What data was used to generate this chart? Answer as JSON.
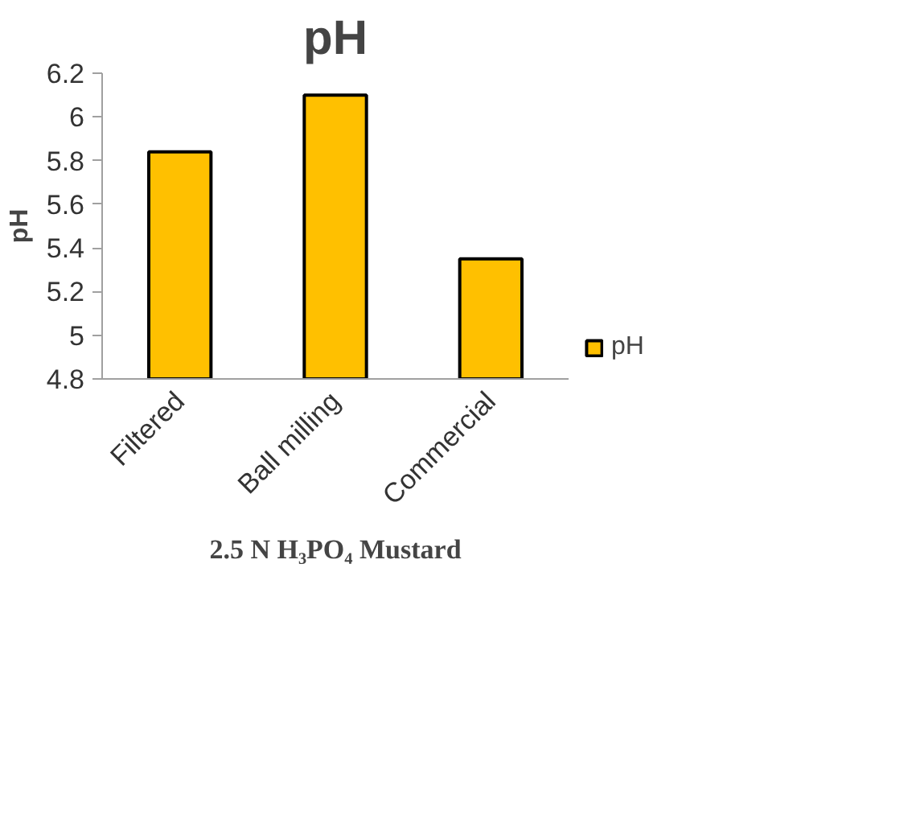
{
  "chart_data": {
    "type": "bar",
    "title": "pH",
    "xlabel": "2.5 N H₃PO₄ Mustard",
    "ylabel": "pH",
    "categories": [
      "Filtered",
      "Ball milling",
      "Commercial"
    ],
    "series": [
      {
        "name": "pH",
        "color": "#ffc000",
        "values": [
          5.84,
          6.1,
          5.35
        ]
      }
    ],
    "ylim": [
      4.8,
      6.2
    ],
    "yticks": [
      4.8,
      5,
      5.2,
      5.4,
      5.6,
      5.8,
      6,
      6.2
    ],
    "legend": "right"
  }
}
